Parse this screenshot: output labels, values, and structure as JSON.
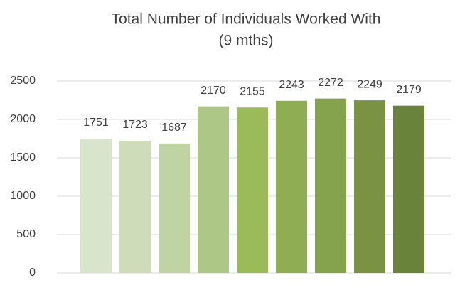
{
  "chart_data": {
    "type": "bar",
    "title": [
      "Total Number of Individuals Worked With",
      "(9 mths)"
    ],
    "categories": [
      null,
      null,
      null,
      null,
      null,
      null,
      null,
      null,
      null
    ],
    "values": [
      1751,
      1723,
      1687,
      2170,
      2155,
      2243,
      2272,
      2249,
      2179
    ],
    "colors": [
      "#d9e4cc",
      "#cfdcb9",
      "#bfd3a3",
      "#adc787",
      "#9bbb59",
      "#8fad52",
      "#84a34c",
      "#799343",
      "#69833a"
    ],
    "ylim": [
      0,
      2500
    ],
    "yticks": [
      0,
      500,
      1000,
      1500,
      2000,
      2500
    ],
    "grid": true
  }
}
